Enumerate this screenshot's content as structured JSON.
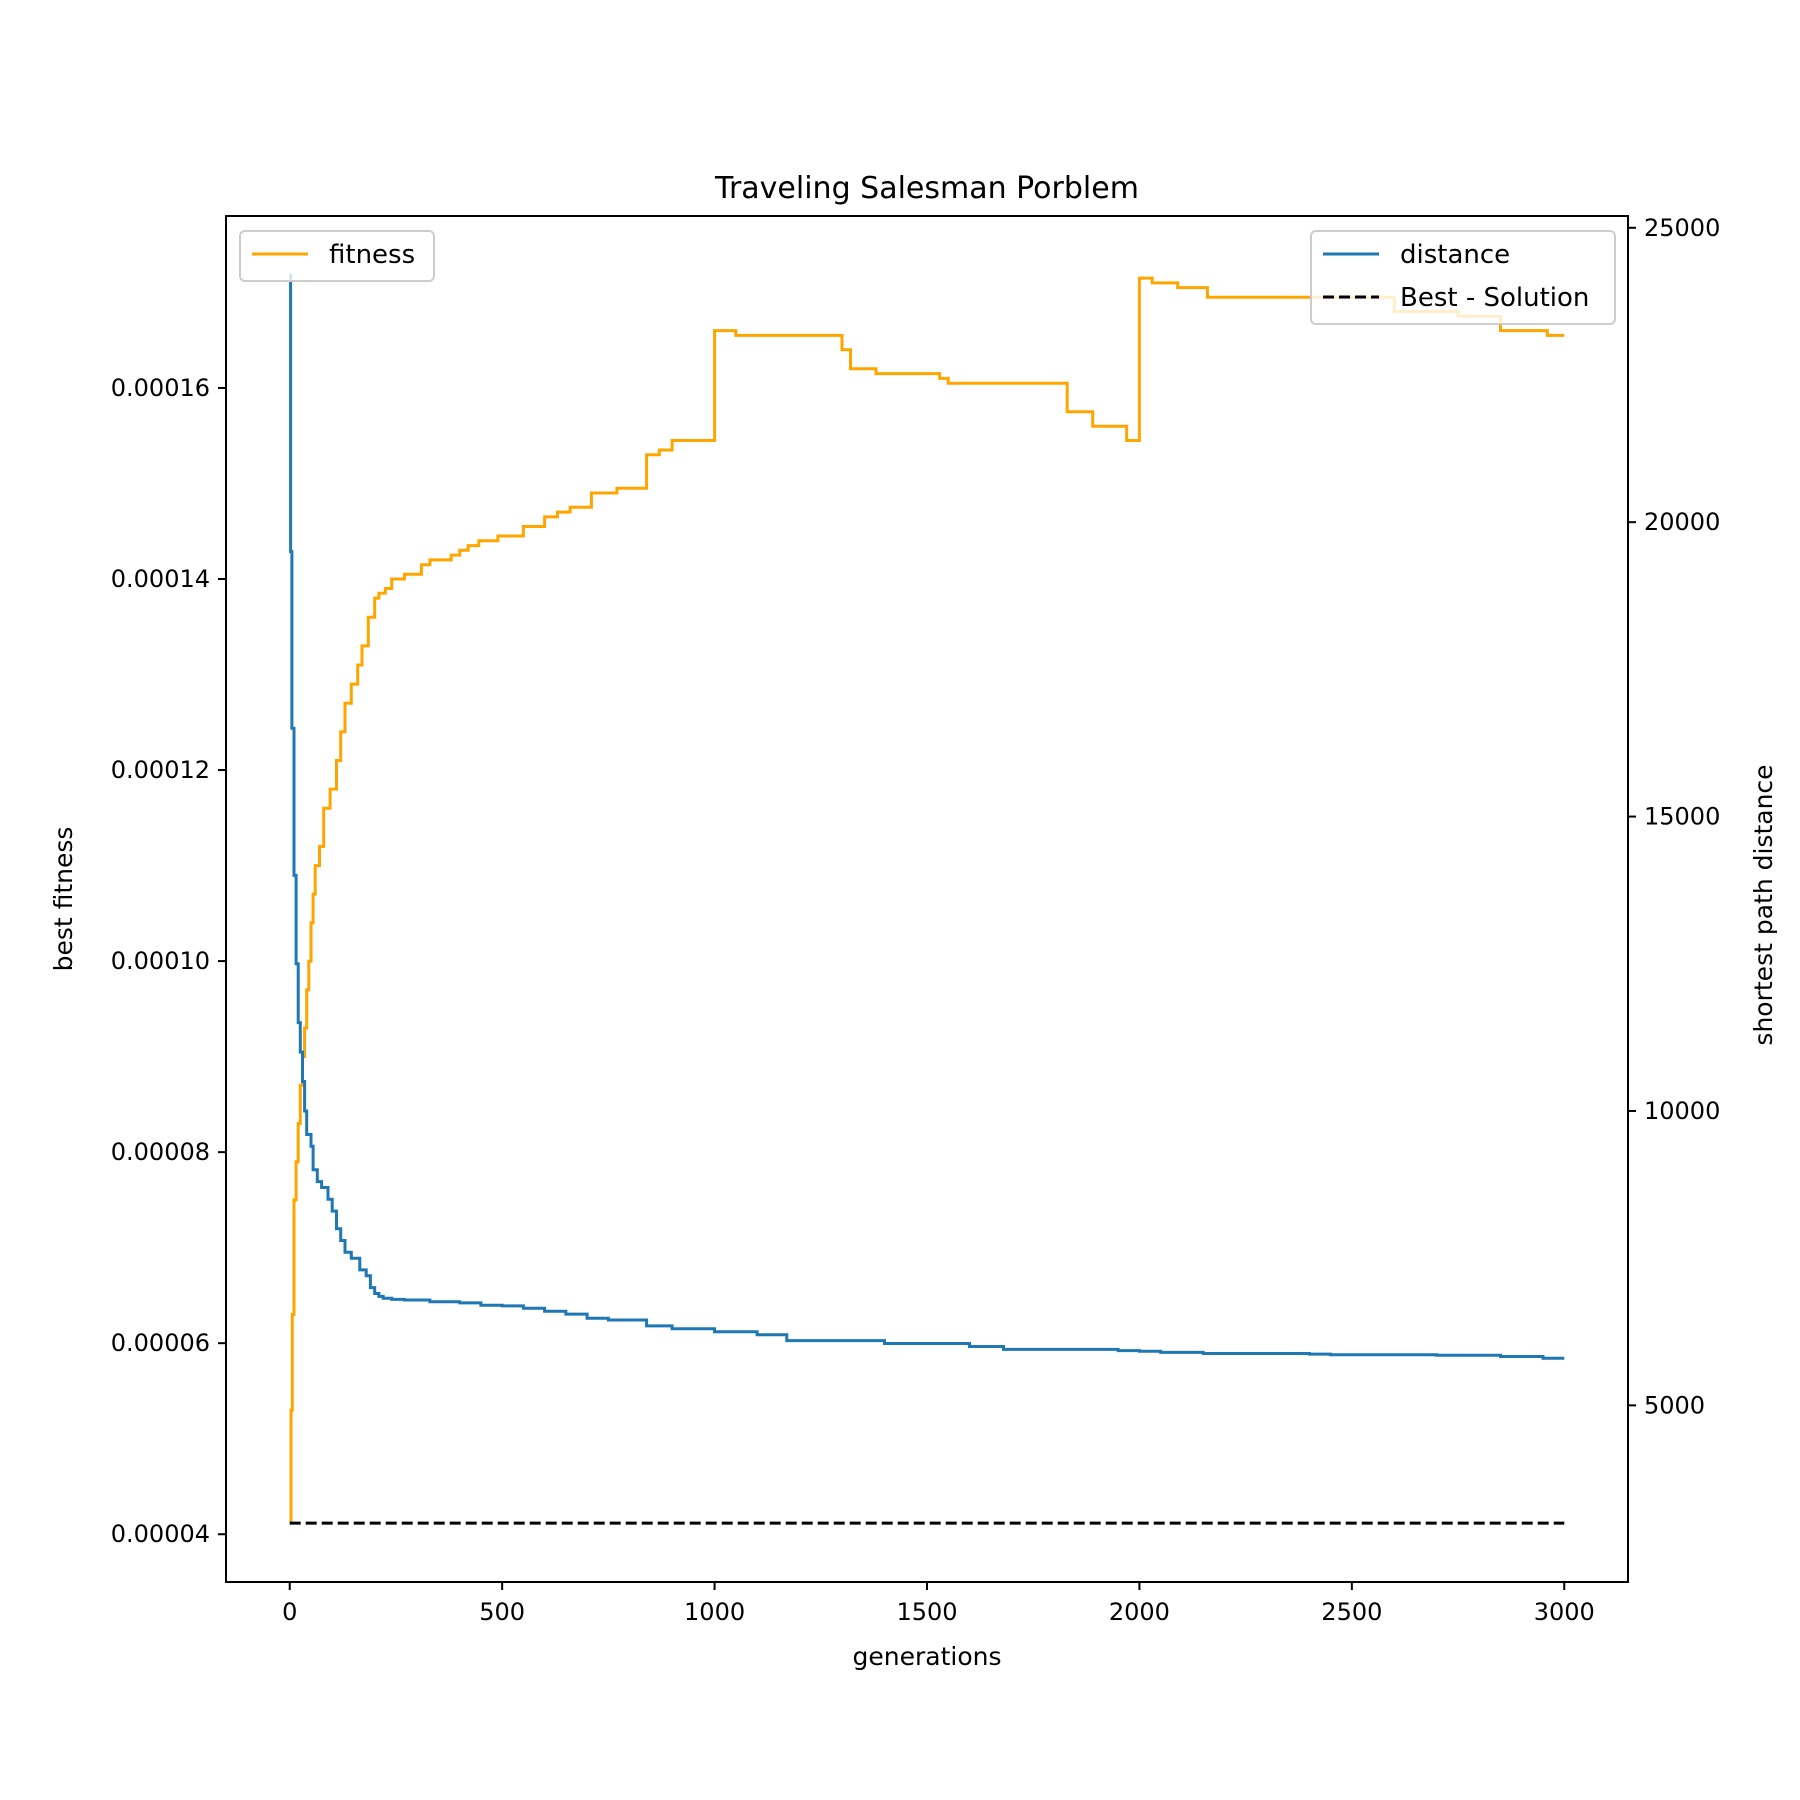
{
  "chart_data": {
    "type": "line",
    "title": "Traveling Salesman Porblem",
    "xlabel": "generations",
    "ylabel_left": "best fitness",
    "ylabel_right": "shortest path distance",
    "xlim": [
      -150,
      3150
    ],
    "ylim_left": [
      3.5e-05,
      0.000178
    ],
    "ylim_right": [
      2000,
      25200
    ],
    "xticks": [
      0,
      500,
      1000,
      1500,
      2000,
      2500,
      3000
    ],
    "xtick_labels": [
      "0",
      "500",
      "1000",
      "1500",
      "2000",
      "2500",
      "3000"
    ],
    "yticks_left": [
      4e-05,
      6e-05,
      8e-05,
      0.0001,
      0.00012,
      0.00014,
      0.00016
    ],
    "ytick_labels_left": [
      "0.00004",
      "0.00006",
      "0.00008",
      "0.00010",
      "0.00012",
      "0.00014",
      "0.00016"
    ],
    "yticks_right": [
      5000,
      10000,
      15000,
      20000,
      25000
    ],
    "ytick_labels_right": [
      "5000",
      "10000",
      "15000",
      "20000",
      "25000"
    ],
    "grid": false,
    "legends": [
      {
        "placement": "upper-left",
        "entries": [
          {
            "label": "fitness",
            "color": "#FFA500",
            "style": "solid"
          }
        ]
      },
      {
        "placement": "upper-right",
        "entries": [
          {
            "label": "distance",
            "color": "#1F77B4",
            "style": "solid"
          },
          {
            "label": "Best - Solution",
            "color": "#000000",
            "style": "dashed"
          }
        ]
      }
    ],
    "series": [
      {
        "name": "fitness",
        "axis": "left",
        "color": "#FFA500",
        "style": "step",
        "x": [
          0,
          3,
          6,
          10,
          15,
          20,
          25,
          30,
          35,
          40,
          45,
          50,
          55,
          60,
          70,
          80,
          95,
          110,
          120,
          130,
          145,
          160,
          170,
          185,
          200,
          210,
          225,
          240,
          270,
          310,
          330,
          380,
          400,
          420,
          445,
          490,
          550,
          600,
          630,
          660,
          710,
          770,
          840,
          870,
          900,
          1000,
          1050,
          1300,
          1320,
          1380,
          1530,
          1550,
          1830,
          1890,
          1970,
          2000,
          2030,
          2090,
          2160,
          2400,
          2600,
          2750,
          2850,
          2960,
          3000
        ],
        "y": [
          4.13e-05,
          5.3e-05,
          6.3e-05,
          7.5e-05,
          7.9e-05,
          8.3e-05,
          8.7e-05,
          9e-05,
          9.3e-05,
          9.7e-05,
          0.0001,
          0.000104,
          0.000107,
          0.00011,
          0.000112,
          0.000116,
          0.000118,
          0.000121,
          0.000124,
          0.000127,
          0.000129,
          0.000131,
          0.000133,
          0.000136,
          0.000138,
          0.0001385,
          0.000139,
          0.00014,
          0.0001405,
          0.0001415,
          0.000142,
          0.0001425,
          0.000143,
          0.0001435,
          0.000144,
          0.0001445,
          0.0001455,
          0.0001465,
          0.000147,
          0.0001475,
          0.000149,
          0.0001495,
          0.000153,
          0.0001535,
          0.0001545,
          0.000166,
          0.0001655,
          0.000164,
          0.000162,
          0.0001615,
          0.000161,
          0.0001605,
          0.0001575,
          0.000156,
          0.0001545,
          0.0001715,
          0.000171,
          0.0001705,
          0.0001695,
          0.0001695,
          0.000168,
          0.0001675,
          0.000166,
          0.0001655,
          0.0001655
        ]
      },
      {
        "name": "distance",
        "axis": "right",
        "color": "#1F77B4",
        "style": "step",
        "x": [
          0,
          2,
          5,
          10,
          15,
          20,
          25,
          30,
          35,
          40,
          50,
          55,
          65,
          75,
          90,
          100,
          110,
          120,
          130,
          145,
          165,
          180,
          190,
          200,
          210,
          220,
          240,
          270,
          330,
          400,
          450,
          500,
          550,
          600,
          650,
          700,
          750,
          840,
          900,
          1000,
          1100,
          1170,
          1300,
          1400,
          1470,
          1600,
          1680,
          1700,
          1900,
          1950,
          2000,
          2050,
          2150,
          2400,
          2450,
          2700,
          2850,
          2950,
          3000
        ],
        "y": [
          24200,
          19500,
          16500,
          14000,
          12500,
          11500,
          11000,
          10500,
          10000,
          9600,
          9400,
          9000,
          8800,
          8700,
          8500,
          8300,
          8000,
          7800,
          7600,
          7500,
          7300,
          7200,
          7000,
          6900,
          6850,
          6820,
          6800,
          6790,
          6760,
          6740,
          6700,
          6690,
          6650,
          6600,
          6550,
          6480,
          6450,
          6350,
          6300,
          6250,
          6200,
          6100,
          6100,
          6050,
          6050,
          6000,
          5950,
          5950,
          5950,
          5930,
          5920,
          5900,
          5880,
          5870,
          5860,
          5850,
          5830,
          5800,
          5800
        ]
      },
      {
        "name": "Best - Solution",
        "axis": "right",
        "color": "#000000",
        "style": "dashed",
        "x": [
          0,
          3000
        ],
        "y": [
          3000,
          3000
        ]
      }
    ]
  }
}
